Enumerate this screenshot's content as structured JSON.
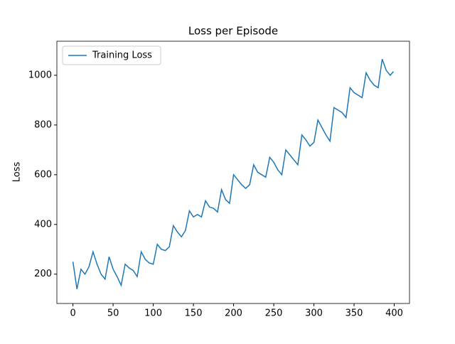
{
  "chart_data": {
    "type": "line",
    "title": "Loss per Episode",
    "ylabel": "Loss",
    "x": [
      0,
      5,
      10,
      15,
      20,
      25,
      30,
      35,
      40,
      45,
      50,
      55,
      60,
      65,
      70,
      75,
      80,
      85,
      90,
      95,
      100,
      105,
      110,
      115,
      120,
      125,
      130,
      135,
      140,
      145,
      150,
      155,
      160,
      165,
      170,
      175,
      180,
      185,
      190,
      195,
      200,
      205,
      210,
      215,
      220,
      225,
      230,
      235,
      240,
      245,
      250,
      255,
      260,
      265,
      270,
      275,
      280,
      285,
      290,
      295,
      300,
      305,
      310,
      315,
      320,
      325,
      330,
      335,
      340,
      345,
      350,
      355,
      360,
      365,
      370,
      375,
      380,
      385,
      390,
      395,
      399
    ],
    "series": [
      {
        "name": "Training Loss",
        "color": "#1f77b4",
        "values": [
          250,
          140,
          220,
          200,
          230,
          290,
          240,
          200,
          180,
          270,
          220,
          190,
          155,
          240,
          225,
          215,
          190,
          290,
          260,
          245,
          240,
          320,
          300,
          295,
          310,
          395,
          370,
          350,
          375,
          455,
          430,
          440,
          430,
          495,
          470,
          465,
          450,
          540,
          500,
          485,
          600,
          580,
          560,
          545,
          560,
          640,
          610,
          600,
          590,
          670,
          650,
          620,
          600,
          700,
          680,
          660,
          640,
          760,
          740,
          715,
          730,
          820,
          790,
          760,
          735,
          870,
          860,
          850,
          830,
          950,
          930,
          920,
          910,
          1010,
          980,
          960,
          950,
          1065,
          1020,
          1000,
          1015
        ]
      }
    ],
    "xlim": [
      -20,
      419
    ],
    "ylim": [
      82,
      1137
    ],
    "xticks": [
      0,
      50,
      100,
      150,
      200,
      250,
      300,
      350,
      400
    ],
    "yticks": [
      200,
      400,
      600,
      800,
      1000
    ],
    "legend": "upper left"
  }
}
